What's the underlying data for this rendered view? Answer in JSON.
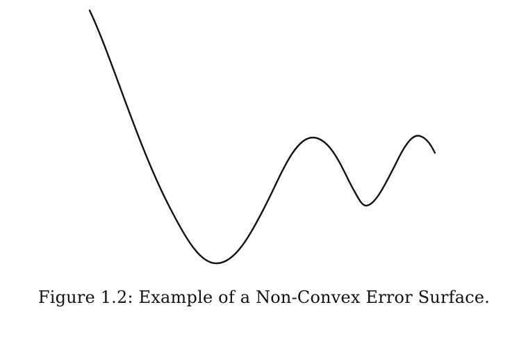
{
  "figure": {
    "caption": "Figure 1.2: Example of a Non-Convex Error Surface.",
    "curve_color": "#111111",
    "background_color": "#ffffff"
  }
}
